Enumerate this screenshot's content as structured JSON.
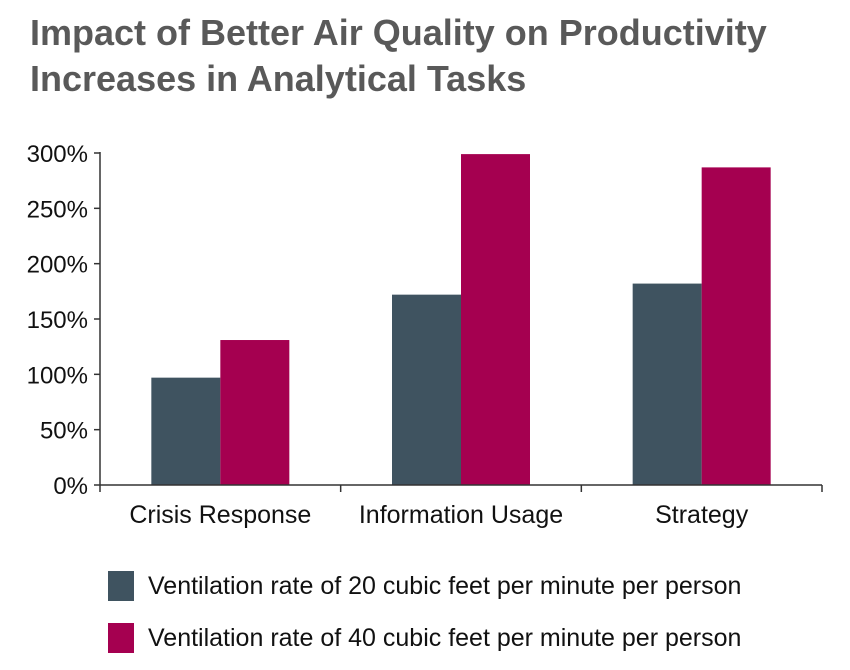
{
  "title": {
    "line1": "Impact of Better Air Quality on Productivity",
    "line2": "Increases in Analytical Tasks"
  },
  "colors": {
    "title": "#595959",
    "series_20": "#3f5360",
    "series_40": "#a50050",
    "axis": "#333333"
  },
  "chart_data": {
    "type": "bar",
    "categories": [
      "Crisis Response",
      "Information Usage",
      "Strategy"
    ],
    "series": [
      {
        "name": "Ventilation rate of 20 cubic feet per minute per person",
        "values": [
          97,
          172,
          182
        ]
      },
      {
        "name": "Ventilation rate of 40 cubic feet per minute per person",
        "values": [
          131,
          299,
          287
        ]
      }
    ],
    "ylim": [
      0,
      300
    ],
    "yticks": [
      "0%",
      "50%",
      "100%",
      "150%",
      "200%",
      "250%",
      "300%"
    ],
    "xlabel": "",
    "ylabel": "",
    "grid": false,
    "legend_position": "bottom"
  }
}
